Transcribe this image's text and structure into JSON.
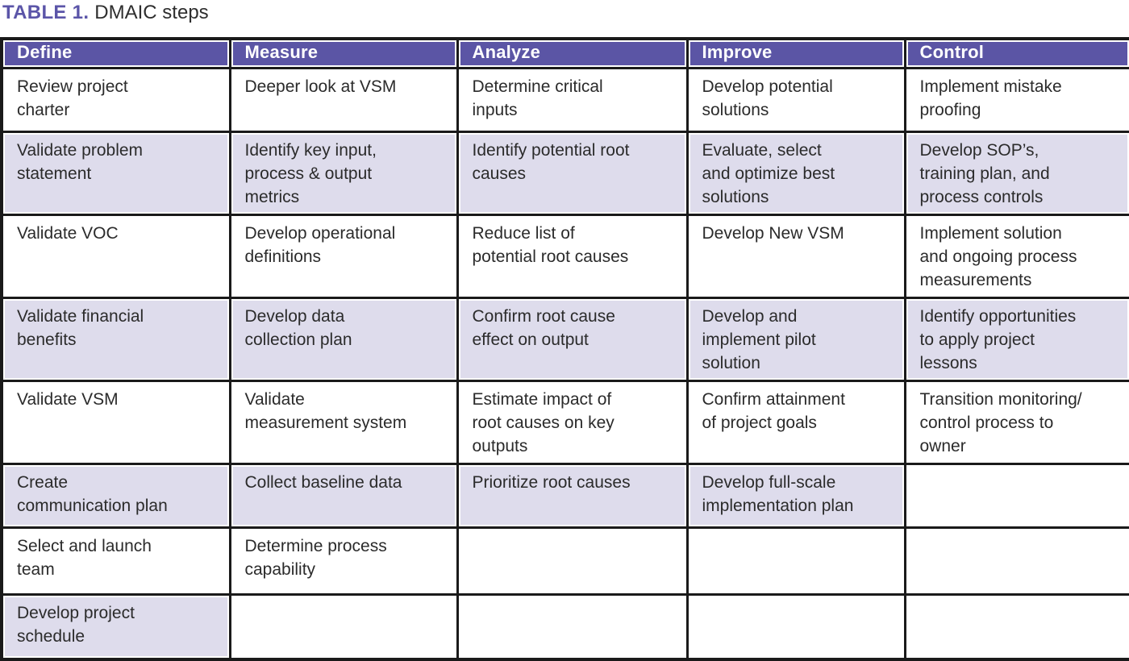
{
  "caption": {
    "label": "TABLE 1.",
    "text": "DMAIC steps"
  },
  "colors": {
    "title_accent": "#5b55a8",
    "header_bg": "#5b55a5",
    "header_text": "#ffffff",
    "row_alt_bg": "#dedcec",
    "border": "#1a1a1a",
    "body_text": "#2b2b2b"
  },
  "table": {
    "columns": [
      "Define",
      "Measure",
      "Analyze",
      "Improve",
      "Control"
    ],
    "rows": [
      {
        "shaded": false,
        "cells": [
          "Review project\ncharter",
          "Deeper look at VSM",
          "Determine critical\ninputs",
          "Develop potential\nsolutions",
          "Implement mistake\nproofing"
        ]
      },
      {
        "shaded": true,
        "cells": [
          "Validate problem\nstatement",
          "Identify key input,\nprocess & output\nmetrics",
          "Identify potential root\ncauses",
          "Evaluate, select\nand optimize best\nsolutions",
          "Develop SOP’s,\ntraining plan, and\nprocess controls"
        ]
      },
      {
        "shaded": false,
        "cells": [
          "Validate VOC",
          "Develop operational\ndefinitions",
          "Reduce list of\npotential root causes",
          "Develop New VSM",
          "Implement solution\nand ongoing process\nmeasurements"
        ]
      },
      {
        "shaded": true,
        "cells": [
          "Validate financial\nbenefits",
          "Develop data\ncollection plan",
          "Confirm root cause\neffect on output",
          "Develop and\nimplement pilot\nsolution",
          "Identify opportunities\nto apply project\nlessons"
        ]
      },
      {
        "shaded": false,
        "cells": [
          "Validate VSM",
          "Validate\nmeasurement system",
          "Estimate impact of\nroot causes on key\noutputs",
          "Confirm attainment\nof project goals",
          "Transition monitoring/\ncontrol process to\nowner"
        ]
      },
      {
        "shaded": true,
        "cells": [
          "Create\ncommunication plan",
          "Collect baseline data",
          "Prioritize root causes",
          "Develop full-scale\nimplementation plan",
          ""
        ]
      },
      {
        "shaded": false,
        "cells": [
          "Select and launch\nteam",
          "Determine process\ncapability",
          "",
          "",
          ""
        ]
      },
      {
        "shaded": true,
        "cells": [
          "Develop project\nschedule",
          "",
          "",
          "",
          ""
        ]
      }
    ]
  }
}
